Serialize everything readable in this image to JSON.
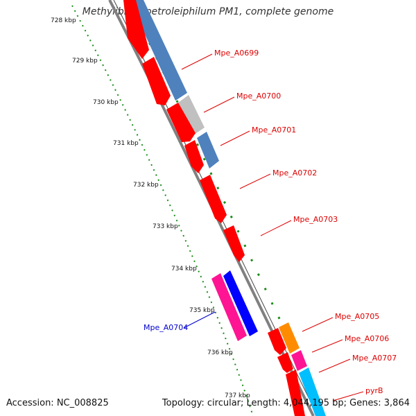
{
  "title": "Methylibium petroleiphilum PM1, complete genome",
  "footer": {
    "accession": "Accession: NC_008825",
    "summary": "Topology: circular; Length: 4,044,195 bp; Genes: 3,864"
  },
  "ticks": [
    "728 kbp",
    "729 kbp",
    "730 kbp",
    "731 kbp",
    "732 kbp",
    "733 kbp",
    "734 kbp",
    "735 kbp",
    "736 kbp",
    "737 kbp"
  ],
  "gene_labels": [
    {
      "text": "Mpe_A0699",
      "color": "#dd0000"
    },
    {
      "text": "Mpe_A0700",
      "color": "#dd0000"
    },
    {
      "text": "Mpe_A0701",
      "color": "#dd0000"
    },
    {
      "text": "Mpe_A0702",
      "color": "#dd0000"
    },
    {
      "text": "Mpe_A0703",
      "color": "#dd0000"
    },
    {
      "text": "Mpe_A0704",
      "color": "#0000cc"
    },
    {
      "text": "Mpe_A0705",
      "color": "#dd0000"
    },
    {
      "text": "Mpe_A0706",
      "color": "#dd0000"
    },
    {
      "text": "Mpe_A0707",
      "color": "#dd0000"
    },
    {
      "text": "pyrB",
      "color": "#dd0000"
    }
  ],
  "colors": {
    "forward_gene": "#ff0000",
    "reverse_gene_blue": "#0000ff",
    "reverse_gene_pink": "#ff1493",
    "cog_steelblue": "#4f81bd",
    "cog_gray": "#c0c0c0",
    "cog_orange": "#ff8c00",
    "cog_magenta": "#ff1493",
    "cog_cyan": "#00bfff",
    "backbone": "#808080",
    "dotted_ruler": "#1a8c1a"
  }
}
